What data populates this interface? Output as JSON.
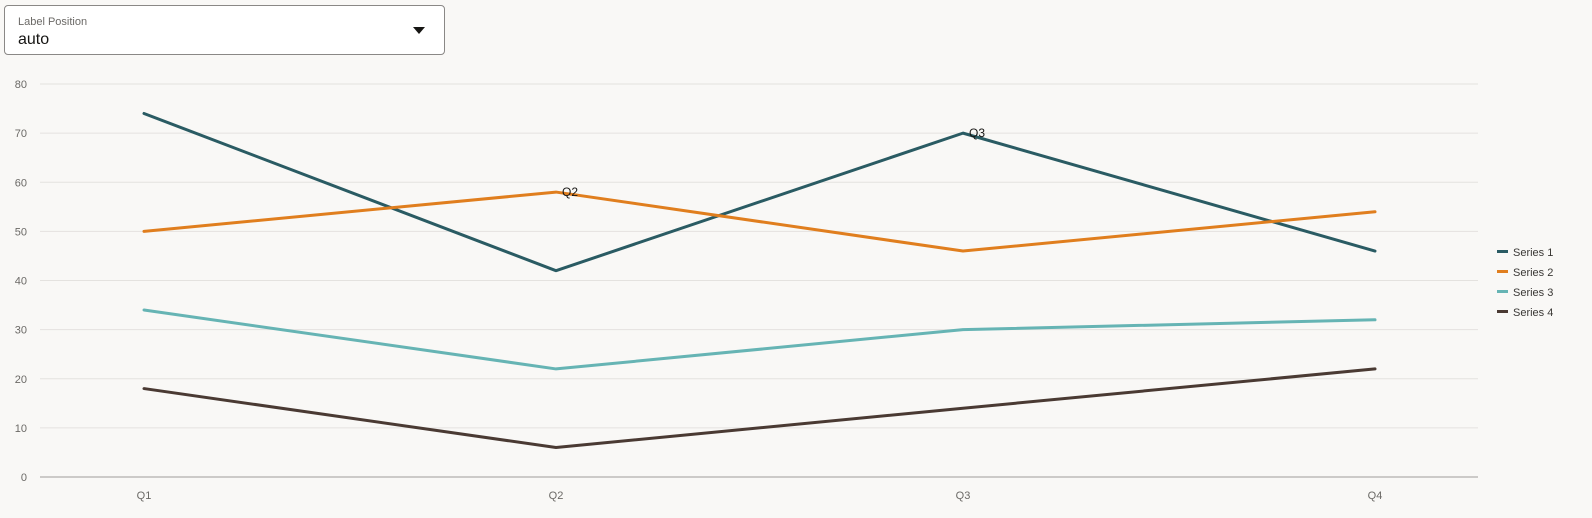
{
  "label_position_select": {
    "label": "Label Position",
    "value": "auto",
    "icon": "chevron-down-icon"
  },
  "chart_data": {
    "type": "line",
    "categories": [
      "Q1",
      "Q2",
      "Q3",
      "Q4"
    ],
    "ylim": [
      0,
      80
    ],
    "yticks": [
      0,
      10,
      20,
      30,
      40,
      50,
      60,
      70,
      80
    ],
    "grid": true,
    "legend_position": "right",
    "series": [
      {
        "name": "Series 1",
        "color": "#2a5b63",
        "values": [
          74,
          42,
          70,
          46
        ]
      },
      {
        "name": "Series 2",
        "color": "#e07e1e",
        "values": [
          50,
          58,
          46,
          54
        ]
      },
      {
        "name": "Series 3",
        "color": "#66b4b4",
        "values": [
          34,
          22,
          30,
          32
        ]
      },
      {
        "name": "Series 4",
        "color": "#4a3a33",
        "values": [
          18,
          6,
          14,
          22
        ]
      }
    ],
    "data_labels": [
      {
        "series": 1,
        "category": "Q2",
        "text": "Q2"
      },
      {
        "series": 0,
        "category": "Q3",
        "text": "Q3"
      }
    ]
  }
}
